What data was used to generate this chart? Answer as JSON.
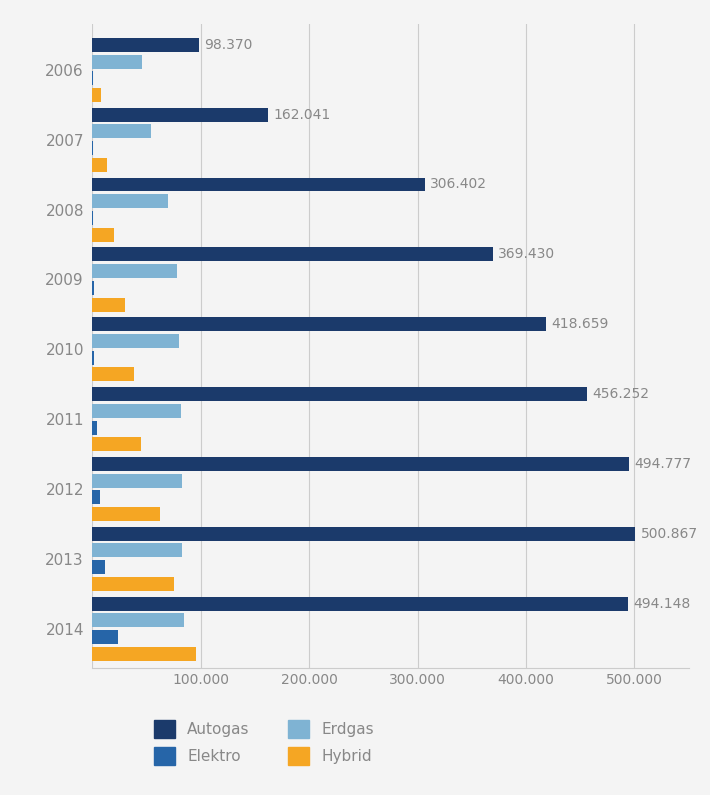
{
  "years": [
    "2006",
    "2007",
    "2008",
    "2009",
    "2010",
    "2011",
    "2012",
    "2013",
    "2014"
  ],
  "autogas": [
    98370,
    162041,
    306402,
    369430,
    418659,
    456252,
    494777,
    500867,
    494148
  ],
  "erdgas": [
    46000,
    54000,
    70000,
    78000,
    80000,
    82000,
    83000,
    83000,
    85000
  ],
  "elektro": [
    500,
    1000,
    1000,
    1200,
    1500,
    4000,
    7000,
    12000,
    24000
  ],
  "hybrid": [
    8000,
    14000,
    20000,
    30000,
    38000,
    45000,
    62000,
    75000,
    96000
  ],
  "autogas_color": "#1b3a6b",
  "erdgas_color": "#7fb3d3",
  "elektro_color": "#2665a8",
  "hybrid_color": "#f5a623",
  "bg_color": "#f4f4f4",
  "label_color": "#888888",
  "grid_color": "#cccccc",
  "xlim": [
    0,
    550000
  ],
  "xticks": [
    0,
    100000,
    200000,
    300000,
    400000,
    500000
  ],
  "xtick_labels": [
    "",
    "100.000",
    "200.000",
    "300.000",
    "400.000",
    "500.000"
  ]
}
